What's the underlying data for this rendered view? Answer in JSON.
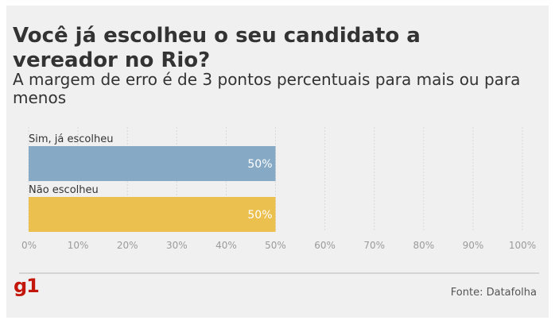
{
  "header": {
    "title": "Você já escolheu o seu candidato a vereador no Rio?",
    "subtitle": "A margem de erro é de 3 pontos percentuais para mais ou para menos"
  },
  "footer": {
    "logo": "g1",
    "source": "Fonte: Datafolha"
  },
  "chart_data": {
    "type": "bar",
    "orientation": "horizontal",
    "categories": [
      "Sim, já escolheu",
      "Não escolheu"
    ],
    "values": [
      50,
      50
    ],
    "data_labels": [
      "50%",
      "50%"
    ],
    "colors": [
      "#86a9c5",
      "#ecc04f"
    ],
    "xlim": [
      0,
      100
    ],
    "x_ticks": [
      0,
      10,
      20,
      30,
      40,
      50,
      60,
      70,
      80,
      90,
      100
    ],
    "x_tick_labels": [
      "0%",
      "10%",
      "20%",
      "30%",
      "40%",
      "50%",
      "60%",
      "70%",
      "80%",
      "90%",
      "100%"
    ],
    "grid": true
  }
}
